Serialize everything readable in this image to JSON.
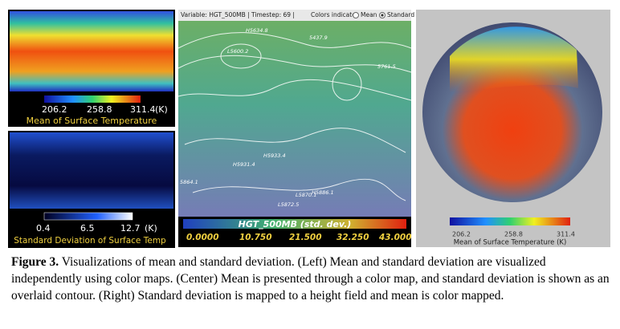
{
  "left_top": {
    "ticks": [
      "206.2",
      "258.8",
      "311.4"
    ],
    "unit": "(K)",
    "label": "Mean of Surface Temperature"
  },
  "left_bottom": {
    "ticks": [
      "0.4",
      "6.5",
      "12.7"
    ],
    "unit": "(K)",
    "label": "Standard Deviation of Surface Temp"
  },
  "center": {
    "header": "Variable: HGT_500MB | Timestep: 69 |",
    "colors_indicate": "Colors indicate:",
    "option_mean": "Mean",
    "option_std": "Standard Deviation",
    "contour_labels": [
      "H5634.8",
      "5437.9",
      "L5600.2",
      "5761.5",
      "H5933.4",
      "H5931.4",
      "5864.1",
      "L5870.1",
      "H5886.1",
      "L5872.5"
    ],
    "colorbar_title": "HGT_500MB (std. dev.)",
    "ticks": [
      "0.0000",
      "10.750",
      "21.500",
      "32.250",
      "43.000"
    ]
  },
  "right": {
    "ticks": [
      "206.2",
      "258.8",
      "311.4"
    ],
    "label": "Mean of Surface Temperature (K)"
  },
  "caption": {
    "label": "Figure 3.",
    "text": "Visualizations of mean and standard deviation. (Left) Mean and standard deviation are visualized independently using color maps. (Center) Mean is presented through a color map, and standard deviation is shown as an overlaid contour. (Right) Standard deviation is mapped to a height field and mean is color mapped."
  }
}
